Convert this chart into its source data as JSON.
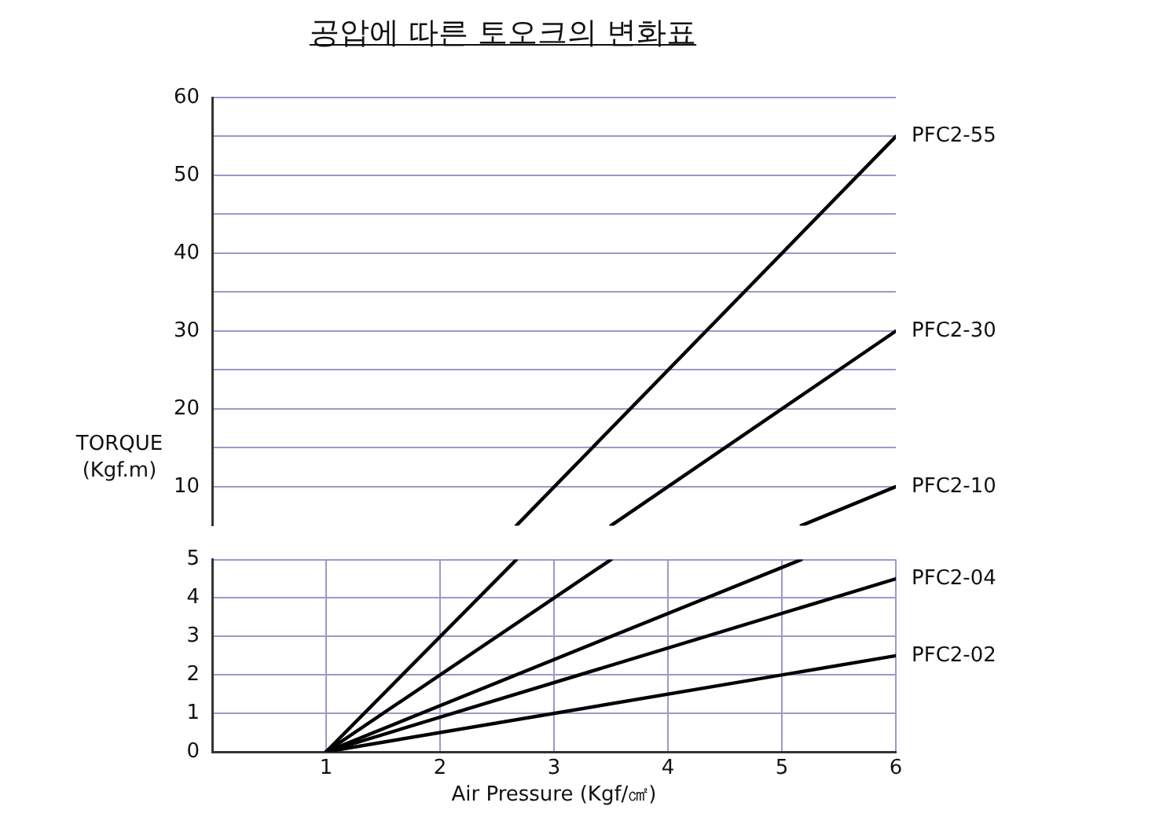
{
  "chart_data": [
    {
      "type": "line",
      "title": "공압에 따른 토오크의 변화표",
      "ylabel": "TORQUE (Kgf.m)",
      "xlim": [
        0,
        6
      ],
      "ylim": [
        5,
        60
      ],
      "yticks": [
        10,
        {
          "value": 15,
          "label": null
        },
        20,
        {
          "value": 25,
          "label": null
        },
        30,
        {
          "value": 35,
          "label": null
        },
        40,
        {
          "value": 45,
          "label": null
        },
        50,
        {
          "value": 55,
          "label": null
        },
        60
      ],
      "tick_labels": "y",
      "grid": true,
      "legend": false,
      "marker": "none",
      "line_style": "solid",
      "series": [
        {
          "name": "PFC2-55",
          "color": "#000000",
          "x": [
            2.67,
            6
          ],
          "values": [
            5,
            55
          ]
        },
        {
          "name": "PFC2-30",
          "color": "#000000",
          "x": [
            3.5,
            6
          ],
          "values": [
            5,
            30
          ]
        },
        {
          "name": "PFC2-10",
          "color": "#000000",
          "x": [
            5.17,
            6
          ],
          "values": [
            5,
            10
          ]
        }
      ]
    },
    {
      "type": "line",
      "xlabel": "Air Pressure (Kgf/㎠)",
      "xlim": [
        0,
        6
      ],
      "xticks": [
        1,
        2,
        3,
        4,
        5,
        6
      ],
      "ylim": [
        0,
        5
      ],
      "yticks": [
        0,
        1,
        2,
        3,
        4,
        5
      ],
      "grid": true,
      "legend": false,
      "marker": "none",
      "line_style": "solid",
      "series": [
        {
          "color": "#000000",
          "x": [
            1,
            2.67
          ],
          "values": [
            0,
            5
          ]
        },
        {
          "color": "#000000",
          "x": [
            1,
            3.5
          ],
          "values": [
            0,
            5
          ]
        },
        {
          "color": "#000000",
          "x": [
            1,
            5.17
          ],
          "values": [
            0,
            5
          ]
        },
        {
          "name": "PFC2-04",
          "color": "#000000",
          "x": [
            1,
            6
          ],
          "values": [
            0,
            4.5
          ]
        },
        {
          "name": "PFC2-02",
          "color": "#000000",
          "x": [
            1,
            6
          ],
          "values": [
            0,
            2.5
          ]
        }
      ]
    }
  ]
}
